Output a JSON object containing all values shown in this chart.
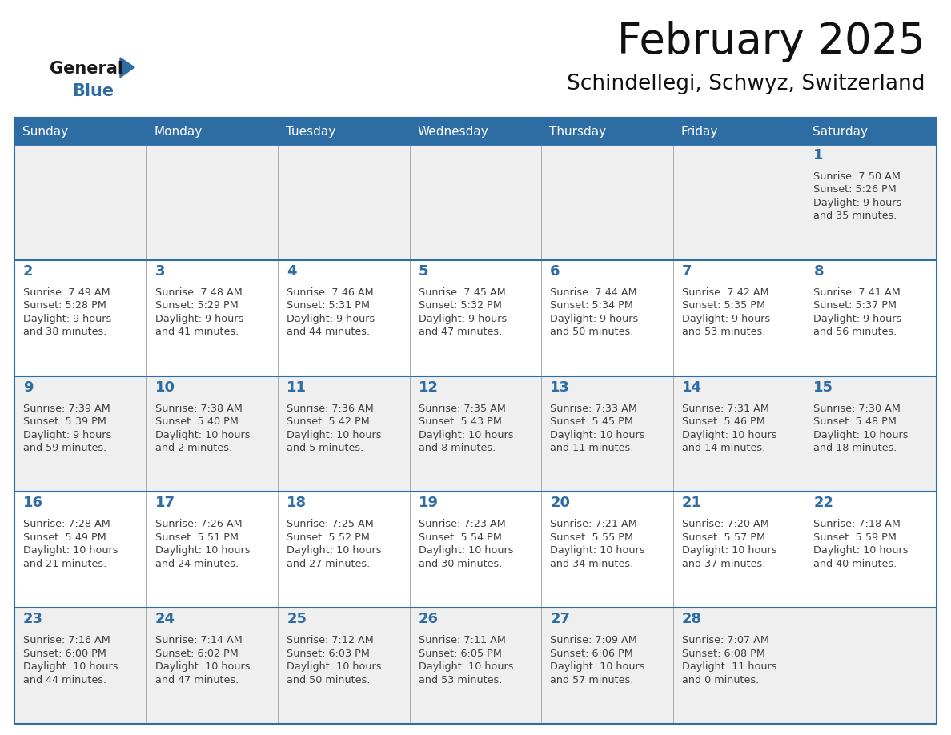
{
  "title": "February 2025",
  "subtitle": "Schindellegi, Schwyz, Switzerland",
  "header_bg": "#2E6DA4",
  "header_text_color": "#FFFFFF",
  "cell_bg_light": "#EFEFEF",
  "cell_bg_white": "#FFFFFF",
  "day_number_color": "#2E6DA4",
  "info_text_color": "#404040",
  "border_color": "#2E6DA4",
  "separator_color": "#2E6DA4",
  "days_of_week": [
    "Sunday",
    "Monday",
    "Tuesday",
    "Wednesday",
    "Thursday",
    "Friday",
    "Saturday"
  ],
  "logo_general_color": "#1a1a1a",
  "logo_blue_color": "#2E6DA4",
  "calendar_data": [
    [
      null,
      null,
      null,
      null,
      null,
      null,
      {
        "day": "1",
        "sunrise": "7:50 AM",
        "sunset": "5:26 PM",
        "daylight": "9 hours\nand 35 minutes."
      }
    ],
    [
      {
        "day": "2",
        "sunrise": "7:49 AM",
        "sunset": "5:28 PM",
        "daylight": "9 hours\nand 38 minutes."
      },
      {
        "day": "3",
        "sunrise": "7:48 AM",
        "sunset": "5:29 PM",
        "daylight": "9 hours\nand 41 minutes."
      },
      {
        "day": "4",
        "sunrise": "7:46 AM",
        "sunset": "5:31 PM",
        "daylight": "9 hours\nand 44 minutes."
      },
      {
        "day": "5",
        "sunrise": "7:45 AM",
        "sunset": "5:32 PM",
        "daylight": "9 hours\nand 47 minutes."
      },
      {
        "day": "6",
        "sunrise": "7:44 AM",
        "sunset": "5:34 PM",
        "daylight": "9 hours\nand 50 minutes."
      },
      {
        "day": "7",
        "sunrise": "7:42 AM",
        "sunset": "5:35 PM",
        "daylight": "9 hours\nand 53 minutes."
      },
      {
        "day": "8",
        "sunrise": "7:41 AM",
        "sunset": "5:37 PM",
        "daylight": "9 hours\nand 56 minutes."
      }
    ],
    [
      {
        "day": "9",
        "sunrise": "7:39 AM",
        "sunset": "5:39 PM",
        "daylight": "9 hours\nand 59 minutes."
      },
      {
        "day": "10",
        "sunrise": "7:38 AM",
        "sunset": "5:40 PM",
        "daylight": "10 hours\nand 2 minutes."
      },
      {
        "day": "11",
        "sunrise": "7:36 AM",
        "sunset": "5:42 PM",
        "daylight": "10 hours\nand 5 minutes."
      },
      {
        "day": "12",
        "sunrise": "7:35 AM",
        "sunset": "5:43 PM",
        "daylight": "10 hours\nand 8 minutes."
      },
      {
        "day": "13",
        "sunrise": "7:33 AM",
        "sunset": "5:45 PM",
        "daylight": "10 hours\nand 11 minutes."
      },
      {
        "day": "14",
        "sunrise": "7:31 AM",
        "sunset": "5:46 PM",
        "daylight": "10 hours\nand 14 minutes."
      },
      {
        "day": "15",
        "sunrise": "7:30 AM",
        "sunset": "5:48 PM",
        "daylight": "10 hours\nand 18 minutes."
      }
    ],
    [
      {
        "day": "16",
        "sunrise": "7:28 AM",
        "sunset": "5:49 PM",
        "daylight": "10 hours\nand 21 minutes."
      },
      {
        "day": "17",
        "sunrise": "7:26 AM",
        "sunset": "5:51 PM",
        "daylight": "10 hours\nand 24 minutes."
      },
      {
        "day": "18",
        "sunrise": "7:25 AM",
        "sunset": "5:52 PM",
        "daylight": "10 hours\nand 27 minutes."
      },
      {
        "day": "19",
        "sunrise": "7:23 AM",
        "sunset": "5:54 PM",
        "daylight": "10 hours\nand 30 minutes."
      },
      {
        "day": "20",
        "sunrise": "7:21 AM",
        "sunset": "5:55 PM",
        "daylight": "10 hours\nand 34 minutes."
      },
      {
        "day": "21",
        "sunrise": "7:20 AM",
        "sunset": "5:57 PM",
        "daylight": "10 hours\nand 37 minutes."
      },
      {
        "day": "22",
        "sunrise": "7:18 AM",
        "sunset": "5:59 PM",
        "daylight": "10 hours\nand 40 minutes."
      }
    ],
    [
      {
        "day": "23",
        "sunrise": "7:16 AM",
        "sunset": "6:00 PM",
        "daylight": "10 hours\nand 44 minutes."
      },
      {
        "day": "24",
        "sunrise": "7:14 AM",
        "sunset": "6:02 PM",
        "daylight": "10 hours\nand 47 minutes."
      },
      {
        "day": "25",
        "sunrise": "7:12 AM",
        "sunset": "6:03 PM",
        "daylight": "10 hours\nand 50 minutes."
      },
      {
        "day": "26",
        "sunrise": "7:11 AM",
        "sunset": "6:05 PM",
        "daylight": "10 hours\nand 53 minutes."
      },
      {
        "day": "27",
        "sunrise": "7:09 AM",
        "sunset": "6:06 PM",
        "daylight": "10 hours\nand 57 minutes."
      },
      {
        "day": "28",
        "sunrise": "7:07 AM",
        "sunset": "6:08 PM",
        "daylight": "11 hours\nand 0 minutes."
      },
      null
    ]
  ]
}
